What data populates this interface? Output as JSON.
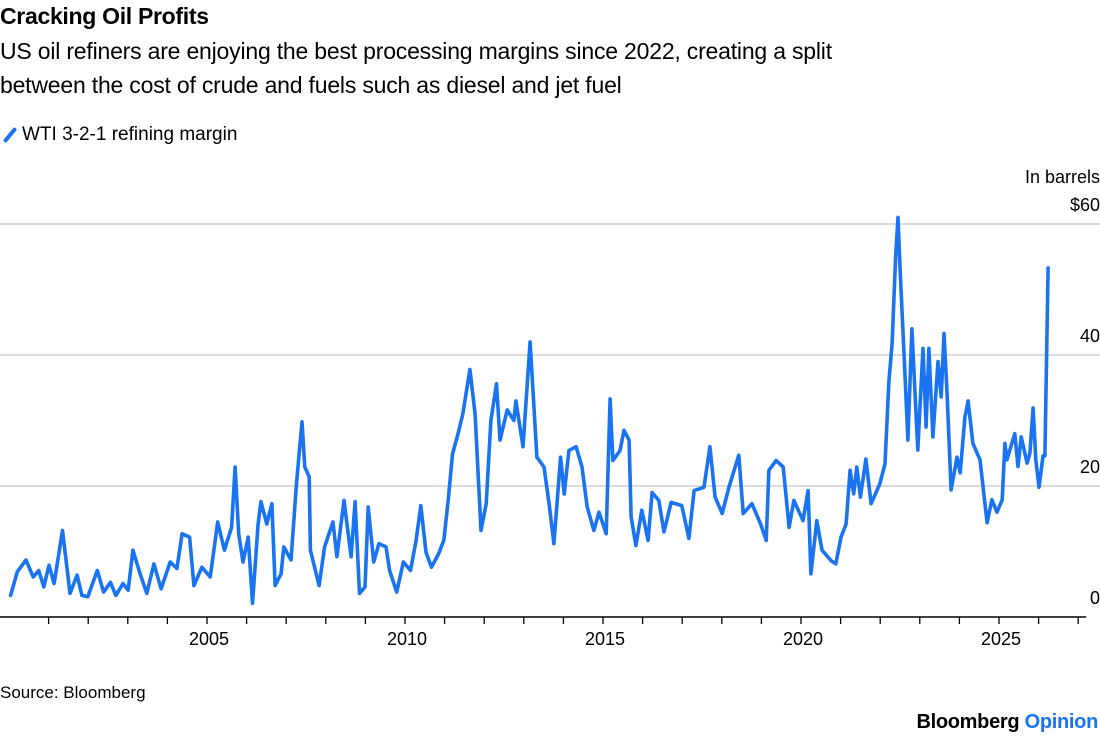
{
  "chart_data": {
    "type": "line",
    "title": "Cracking Oil Profits",
    "subtitle": "US oil refiners are enjoying the best processing margins since 2022, creating a split between the cost of crude and fuels such as diesel and jet fuel",
    "subtitle_lines": [
      "US oil refiners are enjoying the best processing margins since 2022, creating a split",
      "between the cost of crude and fuels such as diesel and jet fuel"
    ],
    "ylabel": "In barrels",
    "ylim": [
      0,
      60
    ],
    "xlim": [
      2000,
      2027.2
    ],
    "y_ticks": [
      {
        "value": 60,
        "label": "$60"
      },
      {
        "value": 40,
        "label": "40"
      },
      {
        "value": 20,
        "label": "20"
      },
      {
        "value": 0,
        "label": "0"
      }
    ],
    "x_tick_labels": [
      "2005",
      "2010",
      "2015",
      "2020",
      "2025"
    ],
    "grid": true,
    "legend_placement": "top-left",
    "color": "#1a73f0",
    "series": [
      {
        "name": "WTI 3-2-1 refining margin",
        "points": [
          [
            2000.04,
            3.3
          ],
          [
            2000.21,
            6.9
          ],
          [
            2000.43,
            8.7
          ],
          [
            2000.61,
            6.1
          ],
          [
            2000.75,
            7.1
          ],
          [
            2000.88,
            4.6
          ],
          [
            2001.01,
            7.9
          ],
          [
            2001.14,
            5.1
          ],
          [
            2001.35,
            13.2
          ],
          [
            2001.54,
            3.6
          ],
          [
            2001.72,
            6.4
          ],
          [
            2001.84,
            3.3
          ],
          [
            2001.99,
            3.1
          ],
          [
            2002.23,
            7.1
          ],
          [
            2002.39,
            3.8
          ],
          [
            2002.56,
            5.3
          ],
          [
            2002.7,
            3.3
          ],
          [
            2002.88,
            5.1
          ],
          [
            2003.01,
            4.1
          ],
          [
            2003.13,
            10.2
          ],
          [
            2003.31,
            6.6
          ],
          [
            2003.48,
            3.6
          ],
          [
            2003.66,
            8.1
          ],
          [
            2003.84,
            4.3
          ],
          [
            2004.07,
            8.4
          ],
          [
            2004.24,
            7.4
          ],
          [
            2004.37,
            12.7
          ],
          [
            2004.56,
            12.2
          ],
          [
            2004.67,
            4.8
          ],
          [
            2004.87,
            7.6
          ],
          [
            2005.08,
            6.1
          ],
          [
            2005.27,
            14.5
          ],
          [
            2005.44,
            10.2
          ],
          [
            2005.62,
            13.7
          ],
          [
            2005.71,
            22.9
          ],
          [
            2005.8,
            12.7
          ],
          [
            2005.91,
            8.4
          ],
          [
            2006.04,
            12.2
          ],
          [
            2006.15,
            2.1
          ],
          [
            2006.29,
            14.2
          ],
          [
            2006.36,
            17.6
          ],
          [
            2006.51,
            14.2
          ],
          [
            2006.64,
            17.3
          ],
          [
            2006.72,
            4.8
          ],
          [
            2006.87,
            6.6
          ],
          [
            2006.94,
            10.7
          ],
          [
            2007.12,
            8.7
          ],
          [
            2007.26,
            20.4
          ],
          [
            2007.4,
            29.8
          ],
          [
            2007.47,
            22.9
          ],
          [
            2007.58,
            21.4
          ],
          [
            2007.61,
            10.2
          ],
          [
            2007.83,
            4.8
          ],
          [
            2007.97,
            10.7
          ],
          [
            2008.18,
            14.5
          ],
          [
            2008.28,
            9.2
          ],
          [
            2008.46,
            17.8
          ],
          [
            2008.64,
            9.2
          ],
          [
            2008.74,
            17.6
          ],
          [
            2008.85,
            3.6
          ],
          [
            2008.99,
            4.6
          ],
          [
            2009.07,
            16.8
          ],
          [
            2009.21,
            8.4
          ],
          [
            2009.34,
            11.2
          ],
          [
            2009.52,
            10.7
          ],
          [
            2009.61,
            7.1
          ],
          [
            2009.79,
            3.8
          ],
          [
            2009.96,
            8.4
          ],
          [
            2010.14,
            7.1
          ],
          [
            2010.28,
            11.7
          ],
          [
            2010.4,
            17.0
          ],
          [
            2010.53,
            9.9
          ],
          [
            2010.67,
            7.6
          ],
          [
            2010.85,
            9.7
          ],
          [
            2010.98,
            11.7
          ],
          [
            2011.09,
            17.8
          ],
          [
            2011.2,
            24.9
          ],
          [
            2011.34,
            28.0
          ],
          [
            2011.46,
            31.0
          ],
          [
            2011.64,
            37.8
          ],
          [
            2011.77,
            31.0
          ],
          [
            2011.92,
            13.2
          ],
          [
            2012.05,
            17.3
          ],
          [
            2012.17,
            30.0
          ],
          [
            2012.31,
            35.6
          ],
          [
            2012.4,
            27.0
          ],
          [
            2012.58,
            31.6
          ],
          [
            2012.75,
            30.0
          ],
          [
            2012.8,
            33.0
          ],
          [
            2012.98,
            26.0
          ],
          [
            2013.16,
            42.0
          ],
          [
            2013.33,
            24.4
          ],
          [
            2013.51,
            22.9
          ],
          [
            2013.64,
            17.3
          ],
          [
            2013.76,
            11.2
          ],
          [
            2013.93,
            24.4
          ],
          [
            2014.02,
            18.8
          ],
          [
            2014.14,
            25.4
          ],
          [
            2014.32,
            26.0
          ],
          [
            2014.47,
            22.9
          ],
          [
            2014.6,
            16.8
          ],
          [
            2014.77,
            13.2
          ],
          [
            2014.9,
            16.0
          ],
          [
            2015.08,
            12.7
          ],
          [
            2015.18,
            33.3
          ],
          [
            2015.25,
            23.9
          ],
          [
            2015.43,
            25.4
          ],
          [
            2015.53,
            28.5
          ],
          [
            2015.66,
            27.0
          ],
          [
            2015.71,
            15.3
          ],
          [
            2015.83,
            10.9
          ],
          [
            2015.98,
            16.3
          ],
          [
            2016.14,
            11.7
          ],
          [
            2016.24,
            19.0
          ],
          [
            2016.41,
            17.8
          ],
          [
            2016.54,
            13.0
          ],
          [
            2016.72,
            17.5
          ],
          [
            2016.99,
            17.0
          ],
          [
            2017.17,
            12.0
          ],
          [
            2017.3,
            19.3
          ],
          [
            2017.55,
            19.8
          ],
          [
            2017.7,
            26.0
          ],
          [
            2017.83,
            18.3
          ],
          [
            2018.01,
            15.8
          ],
          [
            2018.18,
            19.8
          ],
          [
            2018.43,
            24.7
          ],
          [
            2018.54,
            15.8
          ],
          [
            2018.76,
            17.3
          ],
          [
            2018.98,
            14.2
          ],
          [
            2019.12,
            11.7
          ],
          [
            2019.19,
            22.4
          ],
          [
            2019.37,
            23.9
          ],
          [
            2019.55,
            22.9
          ],
          [
            2019.7,
            13.7
          ],
          [
            2019.82,
            17.8
          ],
          [
            2020.05,
            14.7
          ],
          [
            2020.18,
            19.3
          ],
          [
            2020.25,
            6.6
          ],
          [
            2020.4,
            14.7
          ],
          [
            2020.53,
            10.2
          ],
          [
            2020.76,
            8.6
          ],
          [
            2020.88,
            8.1
          ],
          [
            2021.01,
            12.2
          ],
          [
            2021.14,
            14.2
          ],
          [
            2021.24,
            22.4
          ],
          [
            2021.33,
            18.8
          ],
          [
            2021.41,
            22.9
          ],
          [
            2021.5,
            18.3
          ],
          [
            2021.64,
            24.1
          ],
          [
            2021.77,
            17.3
          ],
          [
            2021.99,
            20.3
          ],
          [
            2022.12,
            23.4
          ],
          [
            2022.22,
            36.0
          ],
          [
            2022.3,
            41.7
          ],
          [
            2022.39,
            54.9
          ],
          [
            2022.45,
            61.0
          ],
          [
            2022.5,
            53.4
          ],
          [
            2022.63,
            36.6
          ],
          [
            2022.7,
            27.0
          ],
          [
            2022.8,
            44.0
          ],
          [
            2022.95,
            25.5
          ],
          [
            2023.08,
            41.0
          ],
          [
            2023.16,
            29.0
          ],
          [
            2023.23,
            41.0
          ],
          [
            2023.33,
            27.5
          ],
          [
            2023.46,
            39.0
          ],
          [
            2023.54,
            33.6
          ],
          [
            2023.61,
            43.3
          ],
          [
            2023.69,
            34.0
          ],
          [
            2023.79,
            19.4
          ],
          [
            2023.94,
            24.4
          ],
          [
            2024.02,
            22.0
          ],
          [
            2024.14,
            30.5
          ],
          [
            2024.22,
            33.0
          ],
          [
            2024.34,
            26.5
          ],
          [
            2024.52,
            24.0
          ],
          [
            2024.7,
            14.4
          ],
          [
            2024.82,
            17.9
          ],
          [
            2024.95,
            16.0
          ],
          [
            2025.08,
            17.9
          ],
          [
            2025.15,
            26.5
          ],
          [
            2025.2,
            24.0
          ],
          [
            2025.4,
            28.0
          ],
          [
            2025.48,
            23.0
          ],
          [
            2025.56,
            27.5
          ],
          [
            2025.71,
            23.5
          ],
          [
            2025.78,
            25.0
          ],
          [
            2025.86,
            31.9
          ],
          [
            2025.93,
            24.0
          ],
          [
            2026.01,
            19.8
          ],
          [
            2026.11,
            24.6
          ],
          [
            2026.16,
            24.6
          ],
          [
            2026.24,
            53.3
          ]
        ]
      }
    ]
  },
  "footer": {
    "source": "Source: Bloomberg",
    "brand_name": "Bloomberg",
    "brand_section": "Opinion"
  }
}
